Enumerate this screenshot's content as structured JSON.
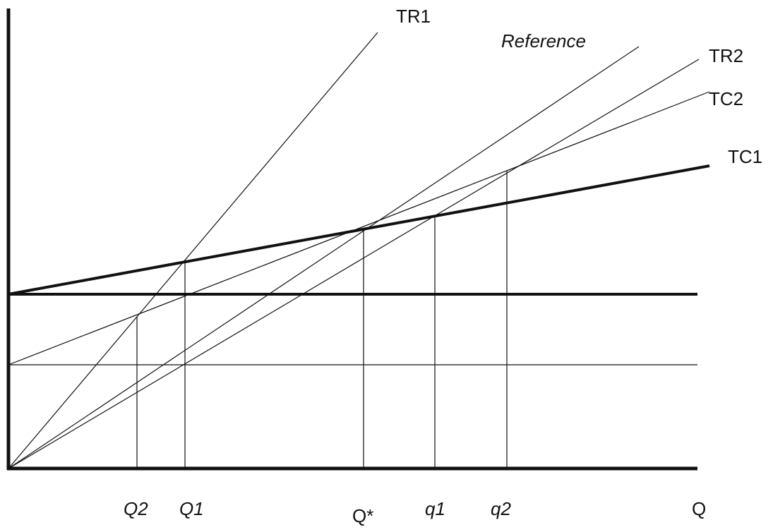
{
  "diagram": {
    "line_labels": {
      "tr1": "TR1",
      "reference": "Reference",
      "tr2": "TR2",
      "tc2": "TC2",
      "tc1": "TC1"
    },
    "x_labels": {
      "q2_upper": "Q2",
      "q1_upper": "Q1",
      "q_star": "Q*",
      "q1_lower": "q1",
      "q2_lower": "q2",
      "q_axis": "Q"
    },
    "colors": {
      "ink": "#111111",
      "background": "#ffffff"
    }
  }
}
